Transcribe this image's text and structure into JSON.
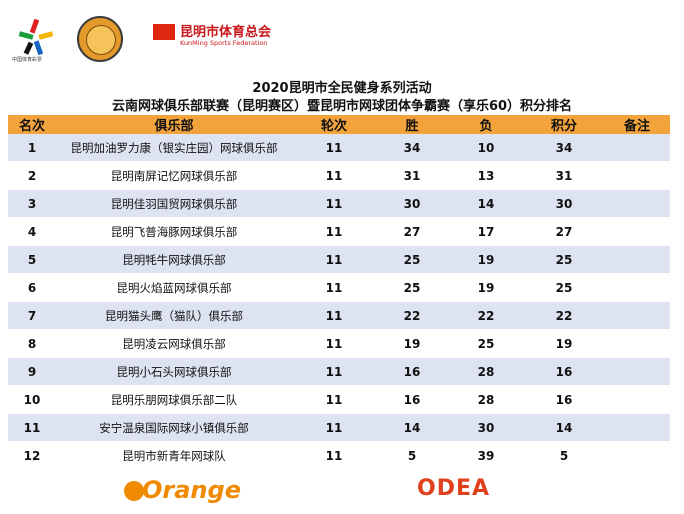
{
  "logos": {
    "lottery_text": "中国体育彩票",
    "federation_name": "昆明市体育总会",
    "federation_en": "KunMing Sports Federation"
  },
  "title_line1": "2020昆明市全民健身系列活动",
  "title_line2": "云南网球俱乐部联赛（昆明赛区）暨昆明市网球团体争霸赛（享乐60）积分排名",
  "table": {
    "headers": [
      "名次",
      "俱乐部",
      "轮次",
      "胜",
      "负",
      "积分",
      "备注"
    ],
    "rows": [
      {
        "rank": "1",
        "club": "昆明加油罗力康（银实庄园）网球俱乐部",
        "rounds": "11",
        "wins": "34",
        "losses": "10",
        "points": "34",
        "note": ""
      },
      {
        "rank": "2",
        "club": "昆明南屏记忆网球俱乐部",
        "rounds": "11",
        "wins": "31",
        "losses": "13",
        "points": "31",
        "note": ""
      },
      {
        "rank": "3",
        "club": "昆明佳羽国贸网球俱乐部",
        "rounds": "11",
        "wins": "30",
        "losses": "14",
        "points": "30",
        "note": ""
      },
      {
        "rank": "4",
        "club": "昆明飞普海豚网球俱乐部",
        "rounds": "11",
        "wins": "27",
        "losses": "17",
        "points": "27",
        "note": ""
      },
      {
        "rank": "5",
        "club": "昆明牦牛网球俱乐部",
        "rounds": "11",
        "wins": "25",
        "losses": "19",
        "points": "25",
        "note": ""
      },
      {
        "rank": "6",
        "club": "昆明火焰蓝网球俱乐部",
        "rounds": "11",
        "wins": "25",
        "losses": "19",
        "points": "25",
        "note": ""
      },
      {
        "rank": "7",
        "club": "昆明猫头鹰（猫队）俱乐部",
        "rounds": "11",
        "wins": "22",
        "losses": "22",
        "points": "22",
        "note": ""
      },
      {
        "rank": "8",
        "club": "昆明凌云网球俱乐部",
        "rounds": "11",
        "wins": "19",
        "losses": "25",
        "points": "19",
        "note": ""
      },
      {
        "rank": "9",
        "club": "昆明小石头网球俱乐部",
        "rounds": "11",
        "wins": "16",
        "losses": "28",
        "points": "16",
        "note": ""
      },
      {
        "rank": "10",
        "club": "昆明乐朋网球俱乐部二队",
        "rounds": "11",
        "wins": "16",
        "losses": "28",
        "points": "16",
        "note": ""
      },
      {
        "rank": "11",
        "club": "安宁温泉国际网球小镇俱乐部",
        "rounds": "11",
        "wins": "14",
        "losses": "30",
        "points": "14",
        "note": ""
      },
      {
        "rank": "12",
        "club": "昆明市新青年网球队",
        "rounds": "11",
        "wins": "5",
        "losses": "39",
        "points": "5",
        "note": ""
      }
    ]
  },
  "sponsors": {
    "orange": "Orange",
    "odea": "ODEA"
  },
  "colors": {
    "header_bg": "#f2a33c",
    "odd_row_bg": "#dde3f1",
    "brand_red": "#c8161d",
    "orange": "#f08a00"
  }
}
